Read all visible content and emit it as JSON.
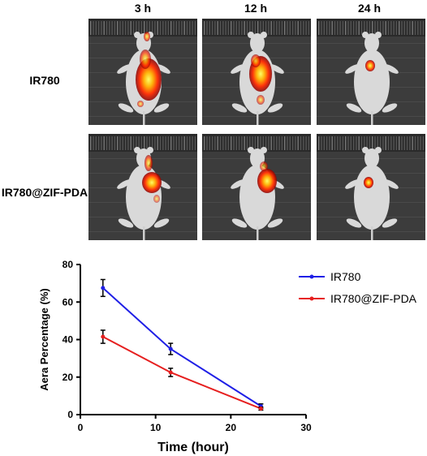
{
  "image_grid": {
    "columns": [
      "3 h",
      "12 h",
      "24 h"
    ],
    "rows": [
      "IR780",
      "IR780@ZIF-PDA"
    ],
    "row_colors": [
      "#ff2a00",
      "#ff2a00"
    ]
  },
  "chart_data": {
    "type": "line",
    "xlabel": "Time (hour)",
    "ylabel": "Aera Percentage (%)",
    "xlim": [
      0,
      30
    ],
    "ylim": [
      0,
      80
    ],
    "xticks": [
      "0",
      "10",
      "20",
      "30"
    ],
    "yticks": [
      "0",
      "20",
      "40",
      "60",
      "80"
    ],
    "x": [
      3,
      12,
      24
    ],
    "legend_position": "top-right",
    "series": [
      {
        "name": "IR780",
        "color": "#1f1fe6",
        "values": [
          67.5,
          35,
          4.5
        ],
        "errors": [
          4.5,
          3,
          1.2
        ]
      },
      {
        "name": "IR780@ZIF-PDA",
        "color": "#e61f1f",
        "values": [
          41.5,
          22.5,
          3.2
        ],
        "errors": [
          3.5,
          2.2,
          0.8
        ]
      }
    ]
  }
}
